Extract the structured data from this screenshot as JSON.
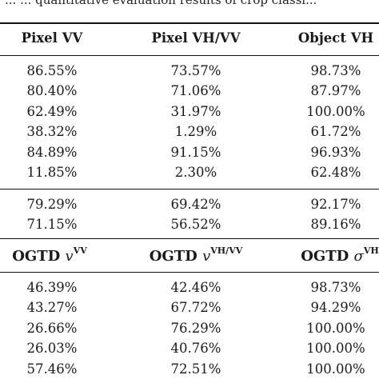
{
  "caption": "... ... quantitative evaluation results of crop classi...",
  "header": [
    "Pixel VV",
    "Pixel VH/VV",
    "Object VH"
  ],
  "block1": [
    [
      "86.55%",
      "73.57%",
      "98.73%"
    ],
    [
      "80.40%",
      "71.06%",
      "87.97%"
    ],
    [
      "62.49%",
      "31.97%",
      "100.00%"
    ],
    [
      "38.32%",
      "1.29%",
      "61.72%"
    ],
    [
      "84.89%",
      "91.15%",
      "96.93%"
    ],
    [
      "11.85%",
      "2.30%",
      "62.48%"
    ]
  ],
  "block2": [
    [
      "79.29%",
      "69.42%",
      "92.17%"
    ],
    [
      "71.15%",
      "56.52%",
      "89.16%"
    ]
  ],
  "ogtd_header": [
    {
      "prefix": "OGTD",
      "var": "v",
      "sup": "VV"
    },
    {
      "prefix": "OGTD",
      "var": "v",
      "sup": "VH/VV"
    },
    {
      "prefix": "OGTD",
      "var": "σ",
      "sup": "VH"
    }
  ],
  "block3": [
    [
      "46.39%",
      "42.46%",
      "98.73%"
    ],
    [
      "43.27%",
      "67.72%",
      "94.29%"
    ],
    [
      "26.66%",
      "76.29%",
      "100.00%"
    ],
    [
      "26.03%",
      "40.76%",
      "100.00%"
    ],
    [
      "57.46%",
      "72.51%",
      "100.00%"
    ]
  ]
}
